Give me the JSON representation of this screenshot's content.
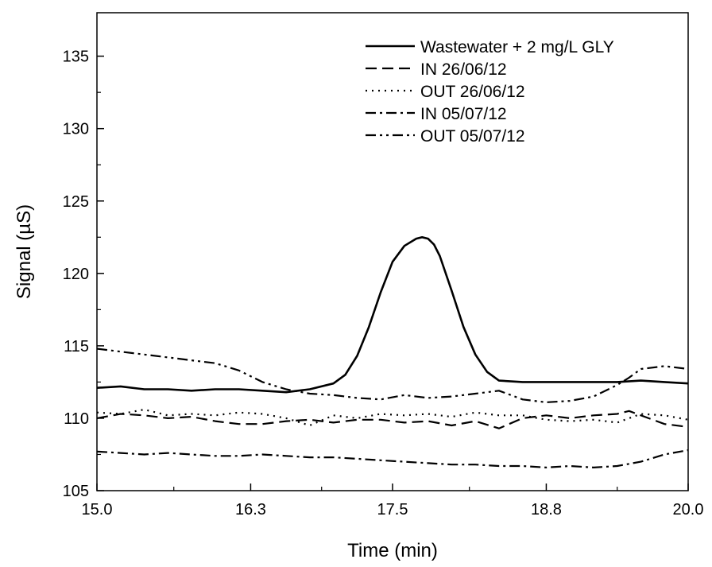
{
  "chart_data": {
    "type": "line",
    "xlabel": "Time (min)",
    "ylabel": "Signal (µS)",
    "xlim": [
      15.0,
      20.0
    ],
    "ylim": [
      105,
      138
    ],
    "xticks": [
      15.0,
      16.3,
      17.5,
      18.8,
      20.0
    ],
    "xtick_labels": [
      "15.0",
      "16.3",
      "17.5",
      "18.8",
      "20.0"
    ],
    "yticks": [
      105,
      110,
      115,
      120,
      125,
      130,
      135
    ],
    "ytick_labels": [
      "105",
      "110",
      "115",
      "120",
      "125",
      "130",
      "135"
    ],
    "legend_position": "top-right",
    "grid": false,
    "series": [
      {
        "name": "Wastewater + 2 mg/L GLY",
        "style": "solid",
        "x": [
          15.0,
          15.2,
          15.4,
          15.6,
          15.8,
          16.0,
          16.2,
          16.4,
          16.6,
          16.8,
          17.0,
          17.1,
          17.2,
          17.3,
          17.4,
          17.5,
          17.6,
          17.7,
          17.75,
          17.8,
          17.85,
          17.9,
          18.0,
          18.1,
          18.2,
          18.3,
          18.4,
          18.6,
          18.8,
          19.0,
          19.2,
          19.4,
          19.6,
          19.8,
          20.0
        ],
        "y": [
          112.1,
          112.2,
          112.0,
          112.0,
          111.9,
          112.0,
          112.0,
          111.9,
          111.8,
          112.0,
          112.4,
          113.0,
          114.3,
          116.3,
          118.7,
          120.8,
          121.9,
          122.4,
          122.5,
          122.4,
          122.0,
          121.2,
          118.8,
          116.3,
          114.4,
          113.2,
          112.6,
          112.5,
          112.5,
          112.5,
          112.5,
          112.5,
          112.6,
          112.5,
          112.4
        ]
      },
      {
        "name": "IN 26/06/12",
        "style": "dashed",
        "x": [
          15.0,
          15.2,
          15.4,
          15.6,
          15.8,
          16.0,
          16.2,
          16.4,
          16.6,
          16.8,
          17.0,
          17.2,
          17.4,
          17.6,
          17.8,
          18.0,
          18.2,
          18.4,
          18.6,
          18.8,
          19.0,
          19.2,
          19.4,
          19.5,
          19.6,
          19.8,
          20.0
        ],
        "y": [
          110.0,
          110.3,
          110.2,
          110.0,
          110.1,
          109.8,
          109.6,
          109.6,
          109.8,
          109.9,
          109.7,
          109.9,
          109.9,
          109.7,
          109.8,
          109.5,
          109.8,
          109.3,
          110.0,
          110.2,
          110.0,
          110.2,
          110.3,
          110.5,
          110.2,
          109.6,
          109.4
        ]
      },
      {
        "name": "OUT 26/06/12",
        "style": "dotted",
        "x": [
          15.0,
          15.2,
          15.4,
          15.6,
          15.8,
          16.0,
          16.2,
          16.4,
          16.6,
          16.8,
          17.0,
          17.2,
          17.4,
          17.6,
          17.8,
          18.0,
          18.2,
          18.4,
          18.6,
          18.8,
          19.0,
          19.2,
          19.4,
          19.6,
          19.8,
          20.0
        ],
        "y": [
          110.4,
          110.3,
          110.6,
          110.2,
          110.3,
          110.2,
          110.4,
          110.3,
          110.0,
          109.5,
          110.2,
          110.0,
          110.3,
          110.2,
          110.3,
          110.1,
          110.4,
          110.2,
          110.2,
          109.9,
          109.8,
          109.9,
          109.7,
          110.3,
          110.2,
          109.9
        ]
      },
      {
        "name": "IN 05/07/12",
        "style": "dashdot",
        "x": [
          15.0,
          15.2,
          15.4,
          15.6,
          15.8,
          16.0,
          16.2,
          16.4,
          16.6,
          16.8,
          17.0,
          17.2,
          17.4,
          17.6,
          17.8,
          18.0,
          18.2,
          18.4,
          18.6,
          18.8,
          19.0,
          19.2,
          19.4,
          19.6,
          19.8,
          20.0
        ],
        "y": [
          107.7,
          107.6,
          107.5,
          107.6,
          107.5,
          107.4,
          107.4,
          107.5,
          107.4,
          107.3,
          107.3,
          107.2,
          107.1,
          107.0,
          106.9,
          106.8,
          106.8,
          106.7,
          106.7,
          106.6,
          106.7,
          106.6,
          106.7,
          107.0,
          107.5,
          107.8
        ]
      },
      {
        "name": "OUT 05/07/12",
        "style": "dashdotdot",
        "x": [
          15.0,
          15.2,
          15.4,
          15.6,
          15.8,
          16.0,
          16.2,
          16.4,
          16.6,
          16.8,
          17.0,
          17.2,
          17.4,
          17.6,
          17.8,
          18.0,
          18.2,
          18.4,
          18.6,
          18.8,
          19.0,
          19.2,
          19.4,
          19.5,
          19.6,
          19.8,
          20.0
        ],
        "y": [
          114.8,
          114.6,
          114.4,
          114.2,
          114.0,
          113.8,
          113.3,
          112.5,
          112.0,
          111.7,
          111.6,
          111.4,
          111.3,
          111.6,
          111.4,
          111.5,
          111.7,
          111.9,
          111.3,
          111.1,
          111.2,
          111.5,
          112.3,
          112.8,
          113.4,
          113.6,
          113.4
        ]
      }
    ]
  }
}
